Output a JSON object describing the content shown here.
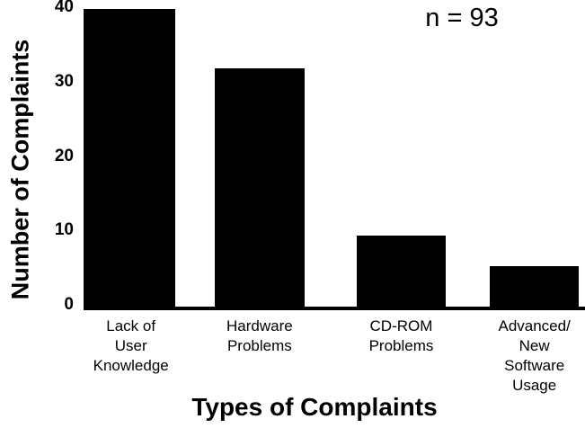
{
  "chart_data": {
    "type": "bar",
    "title": "",
    "annotation": "n = 93",
    "xlabel": "Types of Complaints",
    "ylabel": "Number of Complaints",
    "categories": [
      [
        "Lack of",
        "User",
        "Knowledge"
      ],
      [
        "Hardware",
        "Problems"
      ],
      [
        "CD-ROM",
        "Problems"
      ],
      [
        "Advanced/",
        "New",
        "Software",
        "Usage"
      ]
    ],
    "values": [
      40,
      32,
      9.5,
      5.5
    ],
    "yticks": [
      0,
      10,
      20,
      30,
      40
    ],
    "ylim": [
      0,
      40
    ],
    "bar_color": "#000000",
    "axis_color": "#000000",
    "background": "#ffffff",
    "grid": false,
    "legend": "none"
  }
}
